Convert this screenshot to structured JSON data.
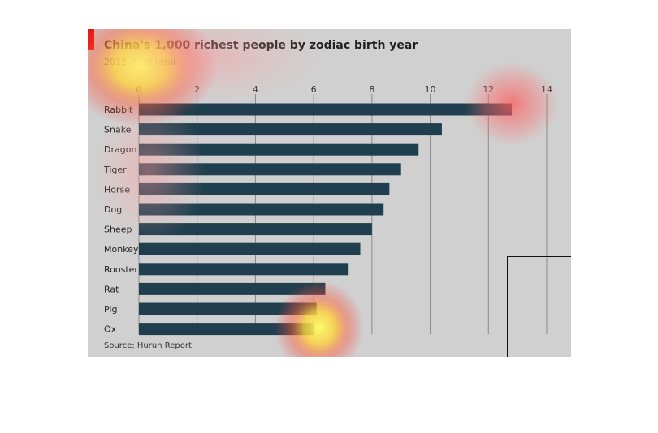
{
  "chart_data": {
    "type": "bar",
    "orientation": "horizontal",
    "title": "China's 1,000 richest people by zodiac birth year",
    "subtitle": "2012, % of total",
    "source": "Source: Hurun Report",
    "categories": [
      "Rabbit",
      "Snake",
      "Dragon",
      "Tiger",
      "Horse",
      "Dog",
      "Sheep",
      "Monkey",
      "Rooster",
      "Rat",
      "Pig",
      "Ox"
    ],
    "values": [
      12.8,
      10.4,
      9.6,
      9.0,
      8.6,
      8.4,
      8.0,
      7.6,
      7.2,
      6.4,
      6.1,
      6.0
    ],
    "xlim": [
      0,
      14
    ],
    "xticks": [
      0,
      2,
      4,
      6,
      8,
      10,
      12,
      14
    ],
    "grid": true,
    "highlight_category": "Rabbit",
    "colors": {
      "bar": "#1f3f4f",
      "highlight_label": "#c0282f",
      "background": "#d0d0d0",
      "gridline": "#8a8a8a",
      "accent": "#e3120b"
    }
  }
}
